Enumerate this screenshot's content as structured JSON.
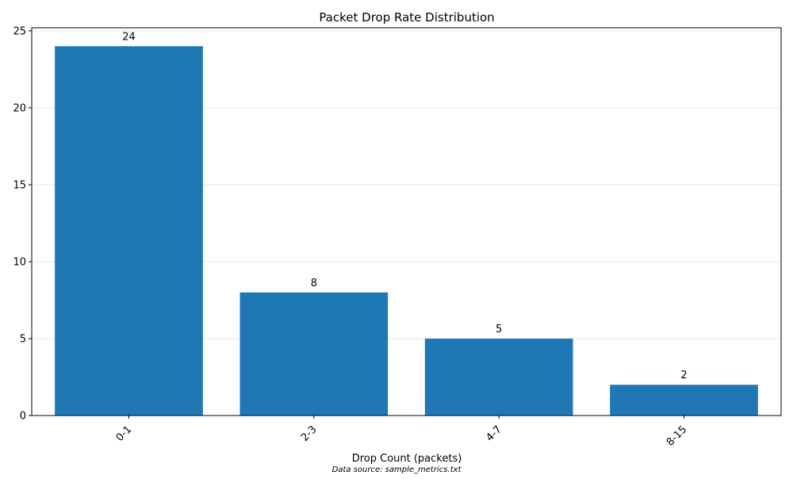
{
  "chart_data": {
    "type": "bar",
    "title": "Packet Drop Rate Distribution",
    "xlabel": "Drop Count (packets)",
    "ylabel": "",
    "categories": [
      "0-1",
      "2-3",
      "4-7",
      "8-15"
    ],
    "values": [
      24,
      8,
      5,
      2
    ],
    "data_labels": [
      "24",
      "8",
      "5",
      "2"
    ],
    "ylim": [
      0,
      25.2
    ],
    "yticks": [
      0,
      5,
      10,
      15,
      20,
      25
    ],
    "grid": "horizontal",
    "legend": "none",
    "bar_color": "#1f77b4",
    "grid_color": "#e6e6e6"
  },
  "footer": {
    "source_note": "Data source: sample_metrics.txt"
  }
}
